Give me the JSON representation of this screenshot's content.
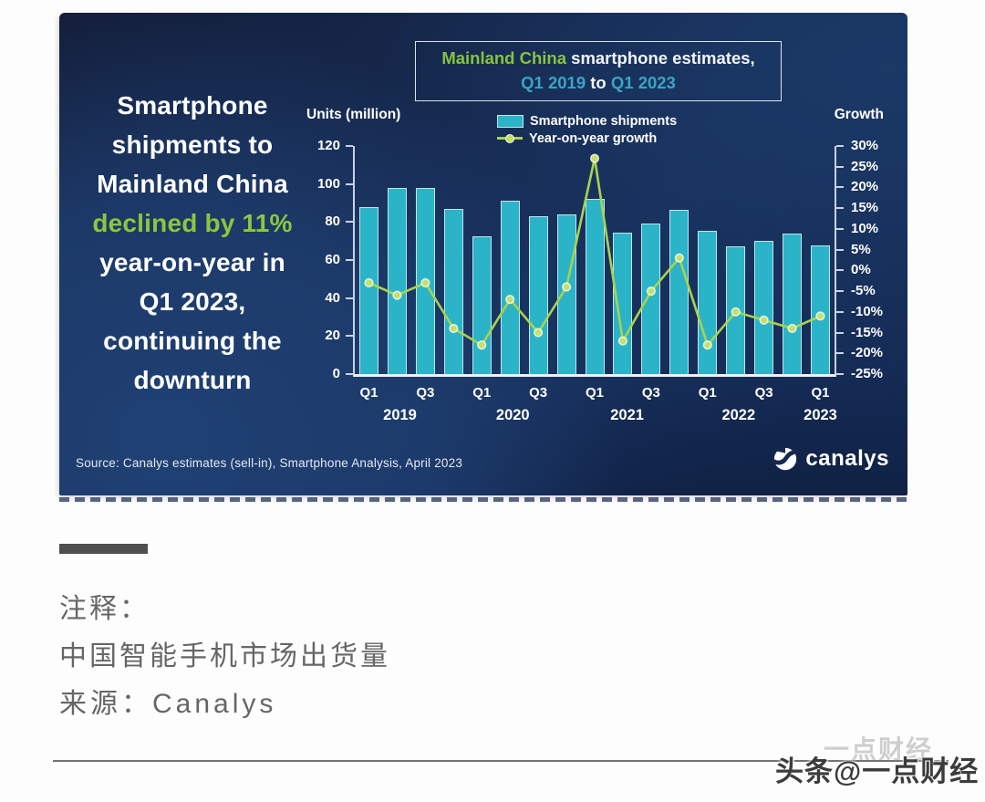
{
  "infographic": {
    "headline": {
      "white_1": "Smartphone\nshipments to\nMainland China\n",
      "green": "declined by 11%",
      "white_2": "\nyear-on-year in\nQ1 2023,\ncontinuing the\ndownturn"
    },
    "title_box": {
      "region": "Mainland China",
      "rest": " smartphone estimates,",
      "q_start": "Q1 2019",
      "to_word": " to ",
      "q_end": "Q1 2023"
    },
    "source": "Source: Canalys estimates (sell-in), Smartphone Analysis, April 2023",
    "logo_text": "canalys",
    "colors": {
      "card_navy": "#16294e",
      "headline_green": "#8dc63f",
      "title_green": "#86c440",
      "title_teal": "#3aa5c4"
    }
  },
  "chart_data": {
    "type": "bar",
    "combo": "bar+line",
    "title": "Mainland China smartphone estimates, Q1 2019 to Q1 2023",
    "categories": [
      "Q1 2019",
      "Q2 2019",
      "Q3 2019",
      "Q4 2019",
      "Q1 2020",
      "Q2 2020",
      "Q3 2020",
      "Q4 2020",
      "Q1 2021",
      "Q2 2021",
      "Q3 2021",
      "Q4 2021",
      "Q1 2022",
      "Q2 2022",
      "Q3 2022",
      "Q4 2022",
      "Q1 2023"
    ],
    "series": [
      {
        "name": "Smartphone shipments",
        "type": "bar",
        "axis": "left",
        "unit": "million units",
        "values": [
          88,
          98,
          98,
          87,
          72.5,
          91,
          83,
          84,
          92,
          74.5,
          79,
          86.5,
          75.5,
          67,
          70,
          74,
          67.5
        ]
      },
      {
        "name": "Year-on-year growth",
        "type": "line",
        "axis": "right",
        "unit": "%",
        "values": [
          -3,
          -6,
          -3,
          -14,
          -18,
          -7,
          -15,
          -4,
          27,
          -17,
          -5,
          3,
          -18,
          -10,
          -12,
          -14,
          -11
        ]
      }
    ],
    "left_axis": {
      "label": "Units (million)",
      "min": 0,
      "max": 120,
      "step": 20
    },
    "right_axis": {
      "label": "Growth",
      "min": -25,
      "max": 30,
      "step": 5,
      "format": "percent"
    },
    "x_quarter_ticks": [
      {
        "i": 0,
        "label": "Q1"
      },
      {
        "i": 2,
        "label": "Q3"
      },
      {
        "i": 4,
        "label": "Q1"
      },
      {
        "i": 6,
        "label": "Q3"
      },
      {
        "i": 8,
        "label": "Q1"
      },
      {
        "i": 10,
        "label": "Q3"
      },
      {
        "i": 12,
        "label": "Q1"
      },
      {
        "i": 14,
        "label": "Q3"
      },
      {
        "i": 16,
        "label": "Q1"
      }
    ],
    "x_year_labels": [
      {
        "label": "2019",
        "slot": 1.1
      },
      {
        "label": "2020",
        "slot": 5.1
      },
      {
        "label": "2021",
        "slot": 9.15
      },
      {
        "label": "2022",
        "slot": 13.1
      },
      {
        "label": "2023",
        "slot": 16
      }
    ],
    "grid": false,
    "legend_position": "top-center",
    "colors": {
      "bar": "#2bb3c8",
      "bar_border": "#bee7ee",
      "line": "#a9d24f",
      "marker": "#c6df6a",
      "marker_ring": "rgba(255,255,255,0.75)"
    }
  },
  "footer": {
    "note_label": "注释：",
    "note_body": "中国智能手机市场出货量",
    "note_source": "来源：Canalys",
    "watermark": "头条@一点财经",
    "watermark_ghost": "一点财经"
  }
}
